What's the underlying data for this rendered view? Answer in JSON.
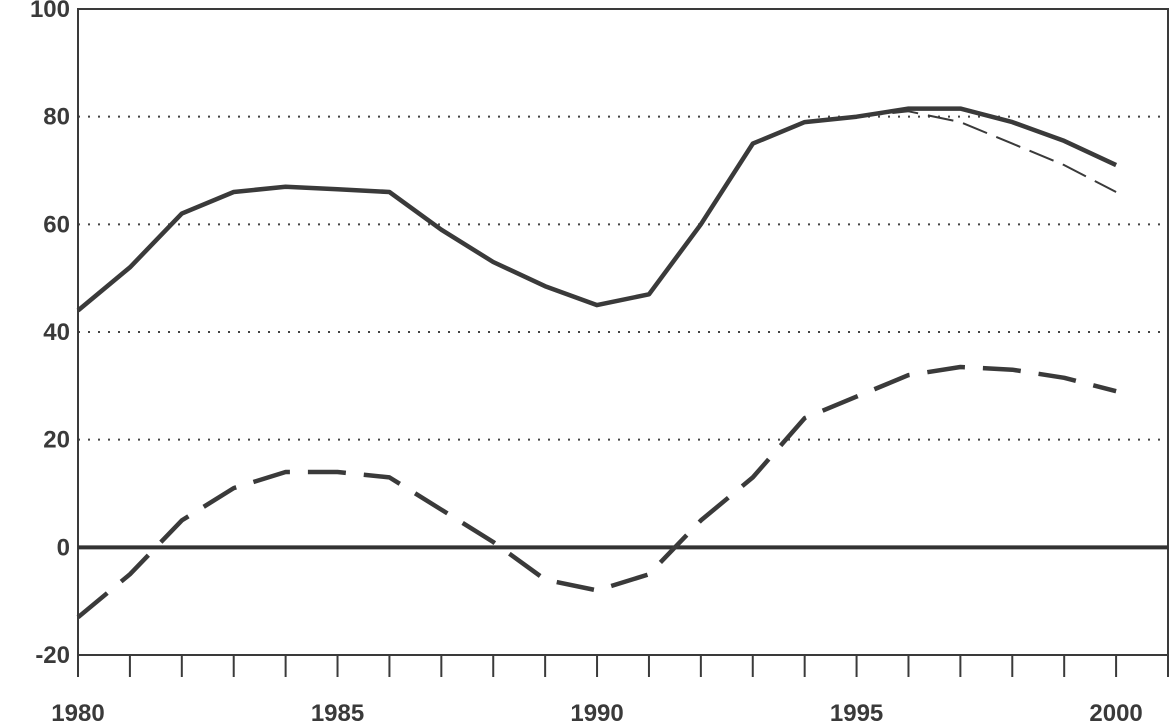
{
  "chart_data": {
    "type": "line",
    "title": "",
    "xlabel": "",
    "ylabel": "",
    "xlim": [
      1980,
      2001
    ],
    "ylim": [
      -20,
      100
    ],
    "yticks": [
      100,
      80,
      60,
      40,
      20,
      0,
      -20
    ],
    "xtick_labels": [
      1980,
      1985,
      1990,
      1995,
      2000
    ],
    "xtick_marks": [
      1980,
      1981,
      1982,
      1983,
      1984,
      1985,
      1986,
      1987,
      1988,
      1989,
      1990,
      1991,
      1992,
      1993,
      1994,
      1995,
      1996,
      1997,
      1998,
      1999,
      2000,
      2001
    ],
    "grid": "horizontal-dotted",
    "zero_line": true,
    "series": [
      {
        "style": "solid-thick",
        "color": "#3a3a3a",
        "x": [
          1980,
          1981,
          1982,
          1983,
          1984,
          1985,
          1986,
          1987,
          1988,
          1989,
          1990,
          1991,
          1992,
          1993,
          1994,
          1995,
          1996,
          1997,
          1998,
          1999,
          2000
        ],
        "values": [
          44,
          52,
          62,
          66,
          67,
          66.5,
          66,
          59,
          53,
          48.5,
          45,
          47,
          60,
          75,
          79,
          80,
          81.5,
          81.5,
          79,
          75.5,
          71
        ]
      },
      {
        "style": "dashed-thin",
        "color": "#3a3a3a",
        "x": [
          1995,
          1996,
          1997,
          1998,
          1999,
          2000
        ],
        "values": [
          80,
          81,
          79,
          75,
          71,
          66
        ]
      },
      {
        "style": "dashed-thick",
        "color": "#3a3a3a",
        "x": [
          1980,
          1981,
          1982,
          1983,
          1984,
          1985,
          1986,
          1987,
          1988,
          1989,
          1990,
          1991,
          1992,
          1993,
          1994,
          1995,
          1996,
          1997,
          1998,
          1999,
          2000
        ],
        "values": [
          -13,
          -5,
          5,
          11,
          14,
          14,
          13,
          7,
          1,
          -6,
          -8,
          -5,
          5,
          13,
          24,
          28,
          32,
          33.5,
          33,
          31.5,
          29
        ]
      }
    ]
  }
}
